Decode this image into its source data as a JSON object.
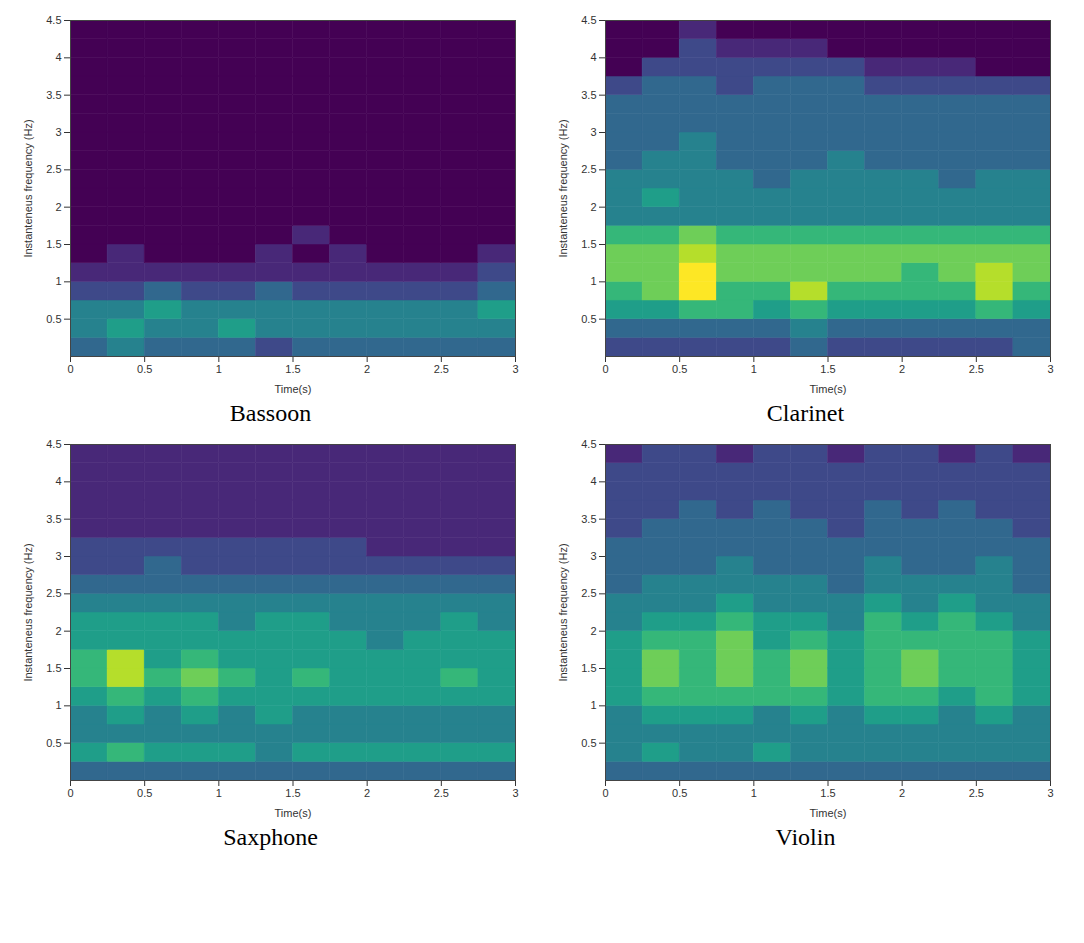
{
  "chart_data": [
    {
      "type": "heatmap",
      "title": "Bassoon",
      "x_label": "Time(s)",
      "y_label": "Instanteneus frequency (Hz)",
      "xlim": [
        0,
        3
      ],
      "ylim": [
        0,
        4.5
      ],
      "xticks": [
        0,
        0.5,
        1,
        1.5,
        2,
        2.5,
        3
      ],
      "yticks": [
        0.5,
        1,
        1.5,
        2,
        2.5,
        3,
        3.5,
        4,
        4.5
      ],
      "x": [
        0,
        0.25,
        0.5,
        0.75,
        1,
        1.25,
        1.5,
        1.75,
        2,
        2.25,
        2.5,
        2.75,
        3
      ],
      "y": [
        0,
        0.25,
        0.5,
        0.75,
        1,
        1.25,
        1.5,
        1.75,
        2,
        2.25,
        2.5,
        2.75,
        3,
        3.25,
        3.5,
        3.75,
        4,
        4.25,
        4.5
      ],
      "values": [
        [
          3,
          4,
          3,
          3,
          3,
          2,
          3,
          3,
          3,
          3,
          3,
          3
        ],
        [
          4,
          5,
          4,
          4,
          5,
          4,
          4,
          4,
          4,
          4,
          4,
          4
        ],
        [
          4,
          4,
          5,
          4,
          4,
          4,
          4,
          4,
          4,
          4,
          4,
          5
        ],
        [
          2,
          2,
          3,
          2,
          2,
          3,
          2,
          2,
          2,
          2,
          2,
          3
        ],
        [
          1,
          1,
          1,
          1,
          1,
          1,
          1,
          1,
          1,
          1,
          1,
          2
        ],
        [
          0,
          1,
          0,
          0,
          0,
          1,
          0,
          1,
          0,
          0,
          0,
          1
        ],
        [
          0,
          0,
          0,
          0,
          0,
          0,
          1,
          0,
          0,
          0,
          0,
          0
        ],
        [
          0,
          0,
          0,
          0,
          0,
          0,
          0,
          0,
          0,
          0,
          0,
          0
        ],
        [
          0,
          0,
          0,
          0,
          0,
          0,
          0,
          0,
          0,
          0,
          0,
          0
        ],
        [
          0,
          0,
          0,
          0,
          0,
          0,
          0,
          0,
          0,
          0,
          0,
          0
        ],
        [
          0,
          0,
          0,
          0,
          0,
          0,
          0,
          0,
          0,
          0,
          0,
          0
        ],
        [
          0,
          0,
          0,
          0,
          0,
          0,
          0,
          0,
          0,
          0,
          0,
          0
        ],
        [
          0,
          0,
          0,
          0,
          0,
          0,
          0,
          0,
          0,
          0,
          0,
          0
        ],
        [
          0,
          0,
          0,
          0,
          0,
          0,
          0,
          0,
          0,
          0,
          0,
          0
        ],
        [
          0,
          0,
          0,
          0,
          0,
          0,
          0,
          0,
          0,
          0,
          0,
          0
        ],
        [
          0,
          0,
          0,
          0,
          0,
          0,
          0,
          0,
          0,
          0,
          0,
          0
        ],
        [
          0,
          0,
          0,
          0,
          0,
          0,
          0,
          0,
          0,
          0,
          0,
          0
        ],
        [
          0,
          0,
          0,
          0,
          0,
          0,
          0,
          0,
          0,
          0,
          0,
          0
        ]
      ]
    },
    {
      "type": "heatmap",
      "title": "Clarinet",
      "x_label": "Time(s)",
      "y_label": "Instanteneus frequency (Hz)",
      "xlim": [
        0,
        3
      ],
      "ylim": [
        0,
        4.5
      ],
      "xticks": [
        0,
        0.5,
        1,
        1.5,
        2,
        2.5,
        3
      ],
      "yticks": [
        0.5,
        1,
        1.5,
        2,
        2.5,
        3,
        3.5,
        4,
        4.5
      ],
      "x": [
        0,
        0.25,
        0.5,
        0.75,
        1,
        1.25,
        1.5,
        1.75,
        2,
        2.25,
        2.5,
        2.75,
        3
      ],
      "y": [
        0,
        0.25,
        0.5,
        0.75,
        1,
        1.25,
        1.5,
        1.75,
        2,
        2.25,
        2.5,
        2.75,
        3,
        3.25,
        3.5,
        3.75,
        4,
        4.25,
        4.5
      ],
      "values": [
        [
          2,
          2,
          2,
          2,
          2,
          3,
          2,
          2,
          2,
          2,
          2,
          3
        ],
        [
          3,
          3,
          3,
          3,
          3,
          4,
          3,
          3,
          3,
          3,
          3,
          3
        ],
        [
          5,
          5,
          6,
          6,
          5,
          6,
          5,
          5,
          5,
          5,
          6,
          5
        ],
        [
          6,
          7,
          9,
          6,
          6,
          8,
          6,
          6,
          6,
          6,
          8,
          6
        ],
        [
          7,
          7,
          9,
          7,
          7,
          7,
          7,
          7,
          6,
          7,
          8,
          7
        ],
        [
          7,
          7,
          8,
          7,
          7,
          7,
          7,
          7,
          7,
          7,
          7,
          7
        ],
        [
          6,
          6,
          7,
          6,
          6,
          6,
          6,
          6,
          6,
          6,
          6,
          6
        ],
        [
          4,
          4,
          4,
          4,
          4,
          4,
          4,
          4,
          4,
          4,
          4,
          4
        ],
        [
          4,
          5,
          4,
          4,
          4,
          4,
          4,
          4,
          4,
          4,
          4,
          4
        ],
        [
          4,
          4,
          4,
          4,
          3,
          4,
          4,
          4,
          4,
          3,
          4,
          4
        ],
        [
          3,
          4,
          4,
          3,
          3,
          3,
          4,
          3,
          3,
          3,
          3,
          3
        ],
        [
          3,
          3,
          4,
          3,
          3,
          3,
          3,
          3,
          3,
          3,
          3,
          3
        ],
        [
          3,
          3,
          3,
          3,
          3,
          3,
          3,
          3,
          3,
          3,
          3,
          3
        ],
        [
          3,
          3,
          3,
          3,
          3,
          3,
          3,
          3,
          3,
          3,
          3,
          3
        ],
        [
          2,
          3,
          3,
          2,
          3,
          3,
          3,
          2,
          2,
          2,
          2,
          2
        ],
        [
          0,
          2,
          2,
          2,
          2,
          2,
          2,
          1,
          1,
          1,
          0,
          0
        ],
        [
          0,
          0,
          2,
          1,
          1,
          1,
          0,
          0,
          0,
          0,
          0,
          0
        ],
        [
          0,
          0,
          1,
          0,
          0,
          0,
          0,
          0,
          0,
          0,
          0,
          0
        ]
      ]
    },
    {
      "type": "heatmap",
      "title": "Saxphone",
      "x_label": "Time(s)",
      "y_label": "Instanteneus frequency (Hz)",
      "xlim": [
        0,
        3
      ],
      "ylim": [
        0,
        4.5
      ],
      "xticks": [
        0,
        0.5,
        1,
        1.5,
        2,
        2.5,
        3
      ],
      "yticks": [
        0.5,
        1,
        1.5,
        2,
        2.5,
        3,
        3.5,
        4,
        4.5
      ],
      "x": [
        0,
        0.25,
        0.5,
        0.75,
        1,
        1.25,
        1.5,
        1.75,
        2,
        2.25,
        2.5,
        2.75,
        3
      ],
      "y": [
        0,
        0.25,
        0.5,
        0.75,
        1,
        1.25,
        1.5,
        1.75,
        2,
        2.25,
        2.5,
        2.75,
        3,
        3.25,
        3.5,
        3.75,
        4,
        4.25,
        4.5
      ],
      "values": [
        [
          3,
          3,
          3,
          3,
          3,
          3,
          3,
          3,
          3,
          3,
          3,
          3
        ],
        [
          5,
          6,
          5,
          5,
          5,
          4,
          5,
          5,
          5,
          5,
          5,
          5
        ],
        [
          4,
          4,
          4,
          4,
          4,
          4,
          4,
          4,
          4,
          4,
          4,
          4
        ],
        [
          4,
          5,
          4,
          5,
          4,
          5,
          4,
          4,
          4,
          4,
          4,
          4
        ],
        [
          5,
          6,
          5,
          6,
          5,
          5,
          5,
          5,
          5,
          5,
          5,
          5
        ],
        [
          6,
          8,
          6,
          7,
          6,
          5,
          6,
          5,
          5,
          5,
          6,
          5
        ],
        [
          6,
          8,
          5,
          6,
          5,
          5,
          5,
          5,
          5,
          5,
          5,
          5
        ],
        [
          5,
          5,
          5,
          5,
          5,
          5,
          5,
          5,
          4,
          5,
          5,
          5
        ],
        [
          5,
          5,
          5,
          5,
          4,
          5,
          5,
          4,
          4,
          4,
          5,
          4
        ],
        [
          4,
          4,
          4,
          4,
          4,
          4,
          4,
          4,
          4,
          4,
          4,
          4
        ],
        [
          3,
          3,
          3,
          3,
          3,
          3,
          3,
          3,
          3,
          3,
          3,
          3
        ],
        [
          2,
          2,
          3,
          2,
          2,
          2,
          2,
          2,
          2,
          2,
          2,
          2
        ],
        [
          2,
          2,
          2,
          2,
          2,
          2,
          2,
          2,
          1,
          1,
          1,
          1
        ],
        [
          1,
          1,
          1,
          1,
          1,
          1,
          1,
          1,
          1,
          1,
          1,
          1
        ],
        [
          1,
          1,
          1,
          1,
          1,
          1,
          1,
          1,
          1,
          1,
          1,
          1
        ],
        [
          1,
          1,
          1,
          1,
          1,
          1,
          1,
          1,
          1,
          1,
          1,
          1
        ],
        [
          1,
          1,
          1,
          1,
          1,
          1,
          1,
          1,
          1,
          1,
          1,
          1
        ],
        [
          1,
          1,
          1,
          1,
          1,
          1,
          1,
          1,
          1,
          1,
          1,
          1
        ]
      ]
    },
    {
      "type": "heatmap",
      "title": "Violin",
      "x_label": "Time(s)",
      "y_label": "Instanteneus frequency (Hz)",
      "xlim": [
        0,
        3
      ],
      "ylim": [
        0,
        4.5
      ],
      "xticks": [
        0,
        0.5,
        1,
        1.5,
        2,
        2.5,
        3
      ],
      "yticks": [
        0.5,
        1,
        1.5,
        2,
        2.5,
        3,
        3.5,
        4,
        4.5
      ],
      "x": [
        0,
        0.25,
        0.5,
        0.75,
        1,
        1.25,
        1.5,
        1.75,
        2,
        2.25,
        2.5,
        2.75,
        3
      ],
      "y": [
        0,
        0.25,
        0.5,
        0.75,
        1,
        1.25,
        1.5,
        1.75,
        2,
        2.25,
        2.5,
        2.75,
        3,
        3.25,
        3.5,
        3.75,
        4,
        4.25,
        4.5
      ],
      "values": [
        [
          3,
          3,
          3,
          3,
          3,
          3,
          3,
          3,
          3,
          3,
          3,
          3
        ],
        [
          4,
          5,
          4,
          4,
          5,
          4,
          4,
          4,
          4,
          4,
          4,
          4
        ],
        [
          4,
          4,
          4,
          4,
          4,
          4,
          4,
          4,
          4,
          4,
          4,
          4
        ],
        [
          4,
          5,
          5,
          5,
          4,
          5,
          4,
          5,
          5,
          4,
          5,
          4
        ],
        [
          5,
          6,
          6,
          6,
          6,
          6,
          5,
          6,
          6,
          5,
          6,
          5
        ],
        [
          5,
          7,
          6,
          7,
          6,
          7,
          5,
          6,
          7,
          6,
          6,
          5
        ],
        [
          5,
          7,
          6,
          7,
          6,
          7,
          5,
          6,
          7,
          6,
          6,
          5
        ],
        [
          5,
          6,
          6,
          7,
          5,
          6,
          5,
          6,
          6,
          6,
          6,
          5
        ],
        [
          4,
          5,
          5,
          6,
          5,
          5,
          4,
          6,
          5,
          6,
          5,
          4
        ],
        [
          4,
          4,
          4,
          5,
          4,
          4,
          4,
          5,
          4,
          5,
          4,
          4
        ],
        [
          3,
          4,
          4,
          4,
          4,
          4,
          3,
          4,
          4,
          4,
          4,
          3
        ],
        [
          3,
          3,
          3,
          4,
          3,
          3,
          3,
          4,
          3,
          3,
          4,
          3
        ],
        [
          3,
          3,
          3,
          3,
          3,
          3,
          3,
          3,
          3,
          3,
          3,
          3
        ],
        [
          2,
          3,
          3,
          3,
          3,
          3,
          2,
          3,
          3,
          3,
          3,
          2
        ],
        [
          2,
          2,
          3,
          2,
          3,
          2,
          2,
          3,
          2,
          3,
          2,
          2
        ],
        [
          2,
          2,
          2,
          2,
          2,
          2,
          2,
          2,
          2,
          2,
          2,
          2
        ],
        [
          2,
          2,
          2,
          2,
          2,
          2,
          2,
          2,
          2,
          2,
          2,
          2
        ],
        [
          1,
          2,
          2,
          1,
          2,
          2,
          1,
          2,
          2,
          1,
          2,
          1
        ]
      ]
    }
  ]
}
